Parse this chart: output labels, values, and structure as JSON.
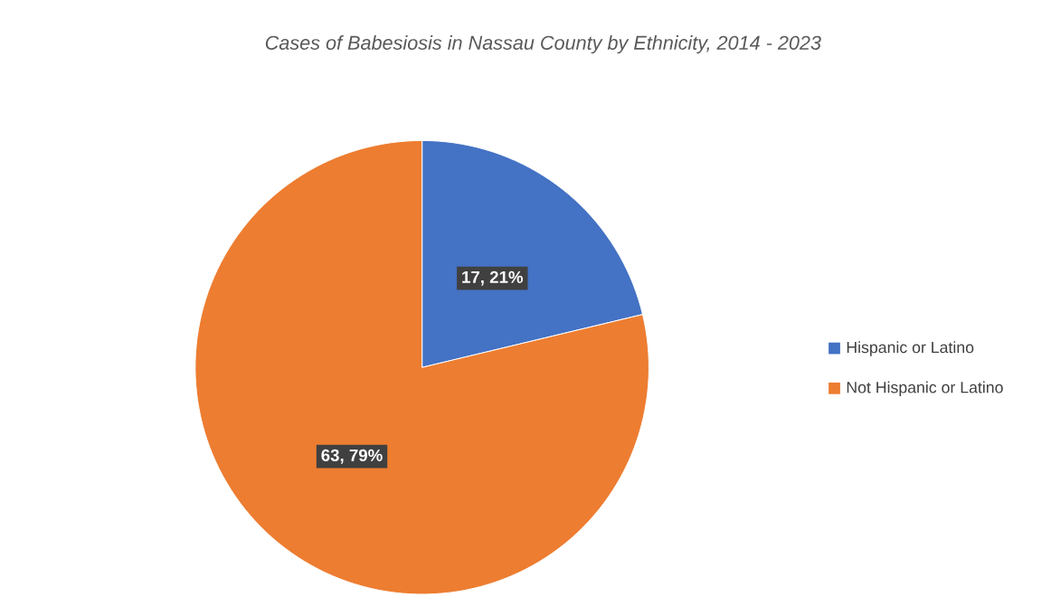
{
  "chart_data": {
    "type": "pie",
    "title": "Cases of Babesiosis in Nassau County by Ethnicity, 2014 - 2023",
    "categories": [
      "Hispanic or Latino",
      "Not Hispanic or Latino"
    ],
    "values": [
      17,
      63
    ],
    "colors": [
      "#4472c4",
      "#ed7d31"
    ],
    "value_labels": [
      "17, 21%",
      "63, 79%"
    ],
    "legend": "right"
  }
}
